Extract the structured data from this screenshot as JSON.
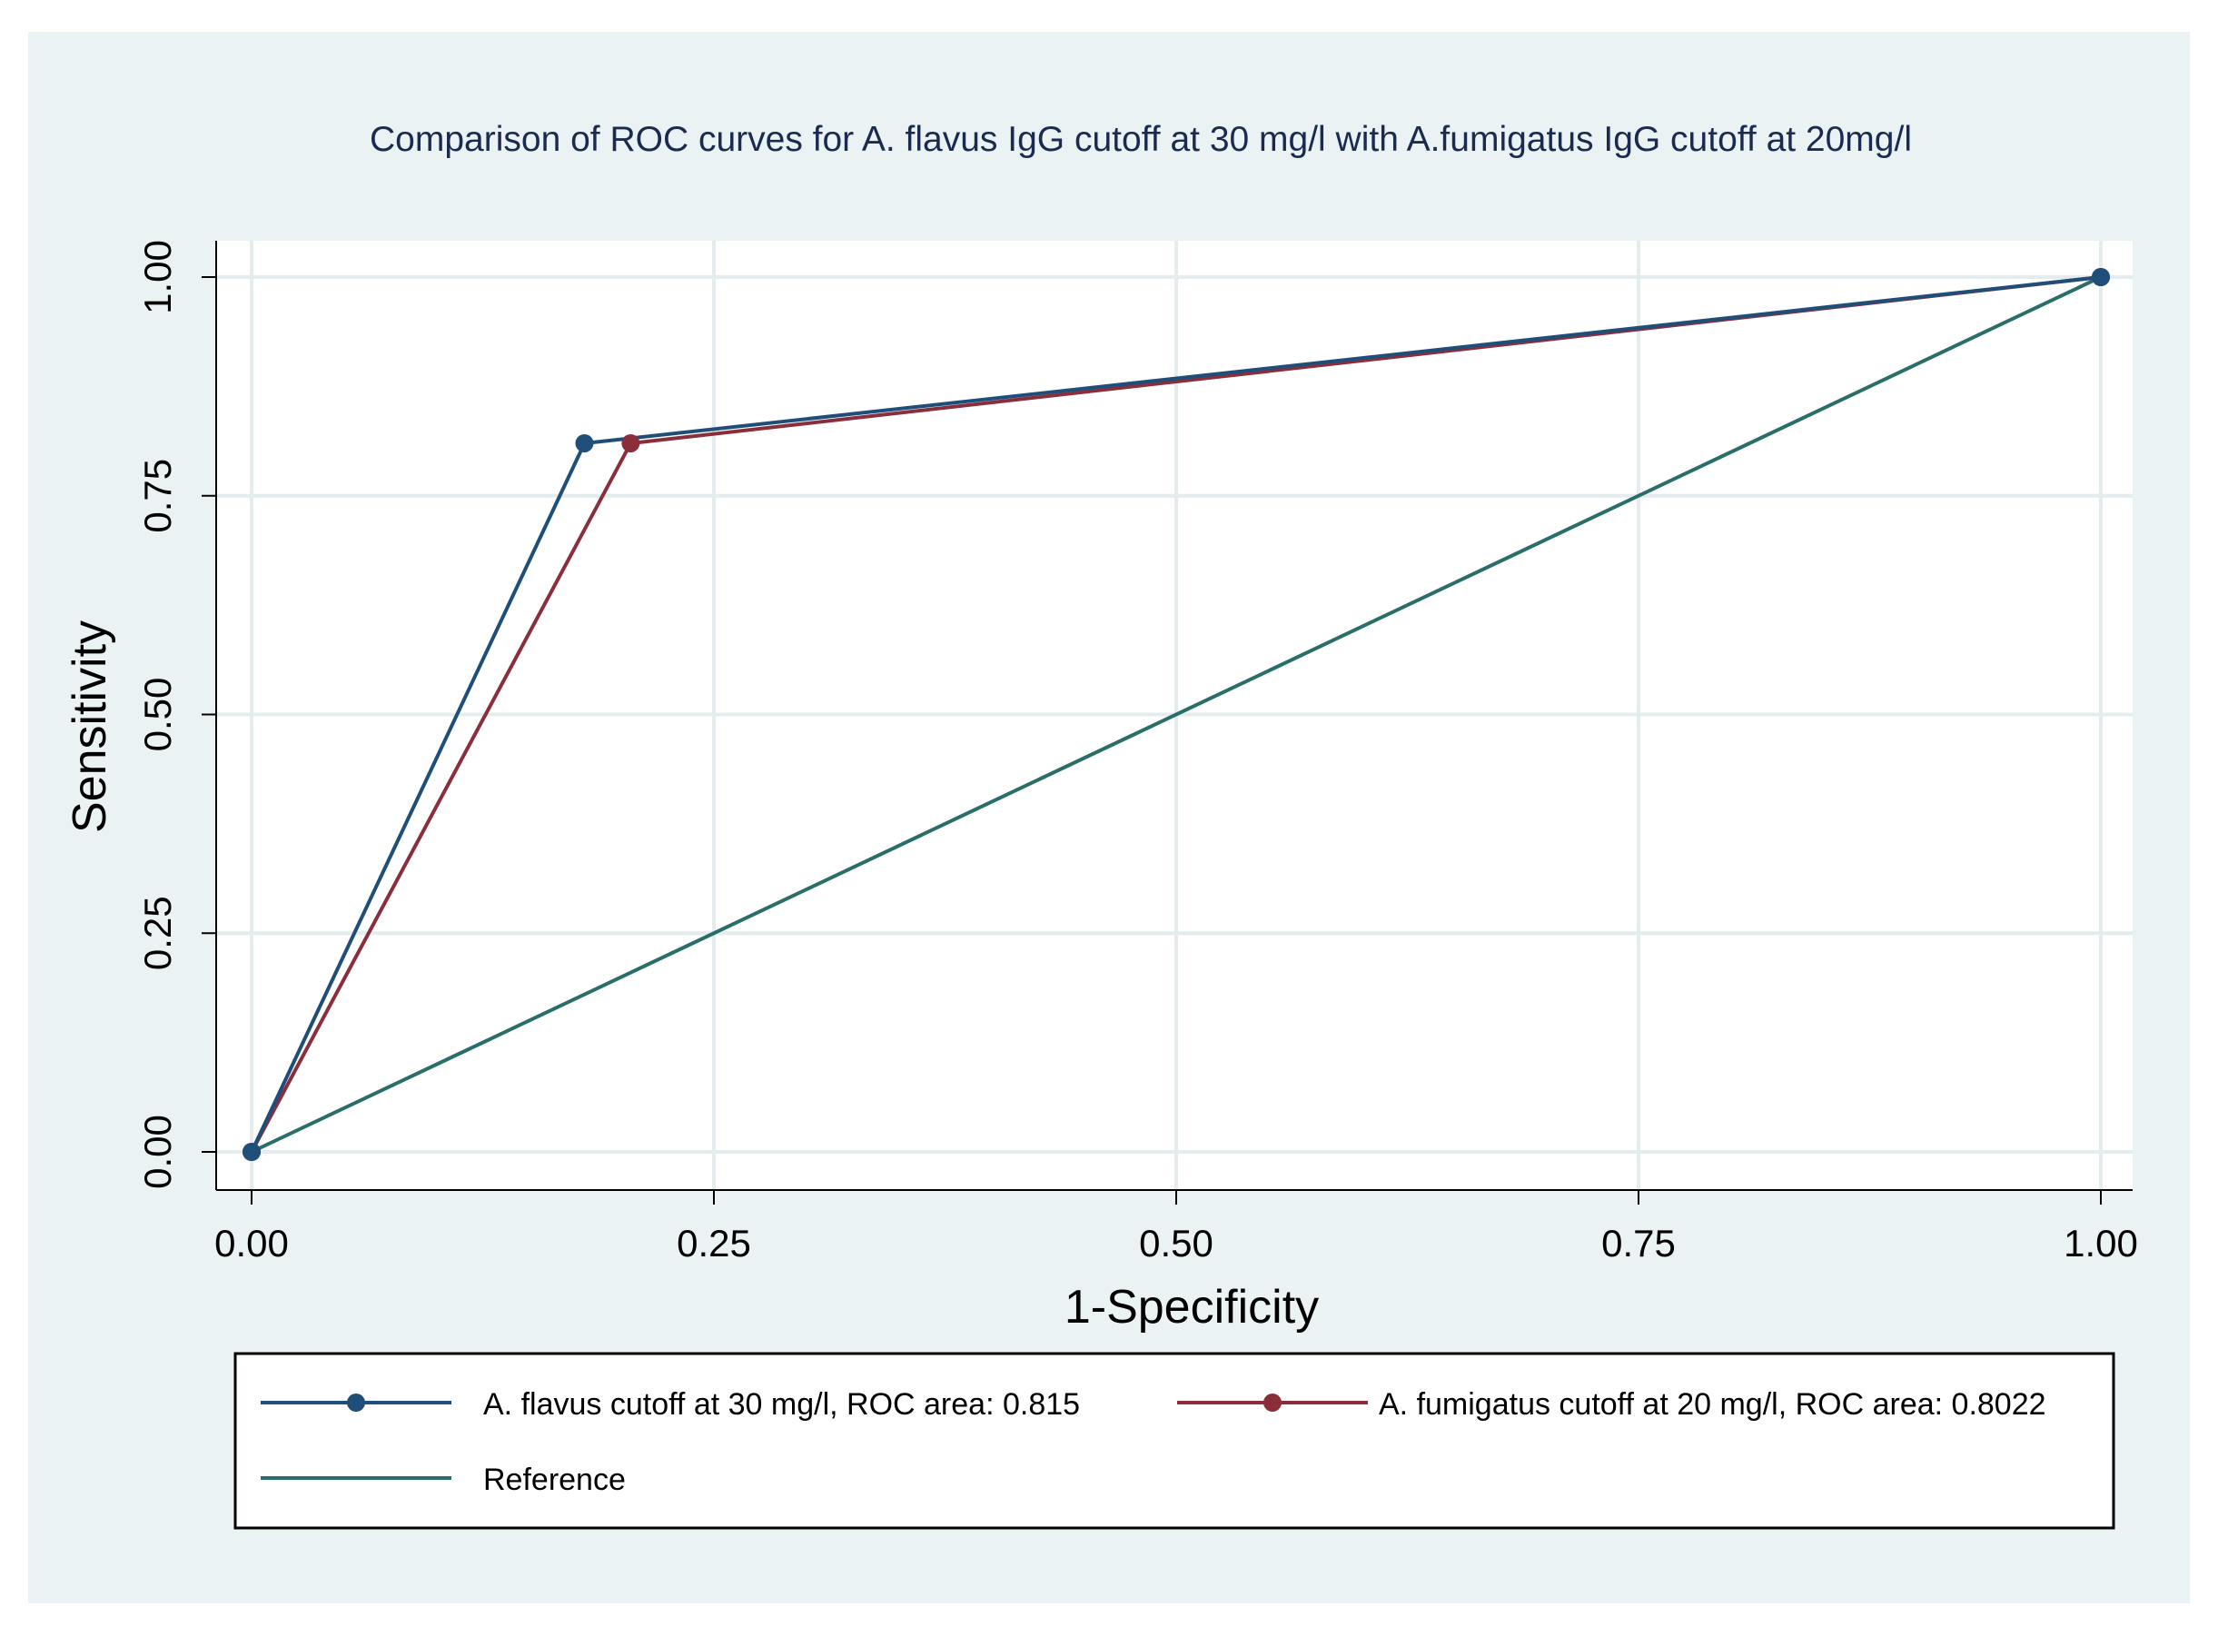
{
  "chart_data": {
    "type": "line",
    "title": "Comparison of ROC curves for A. flavus IgG cutoff at 30 mg/l with A.fumigatus IgG cutoff at 20mg/l",
    "xlabel": "1-Specificity",
    "ylabel": "Sensitivity",
    "xlim": [
      0,
      1
    ],
    "ylim": [
      0,
      1
    ],
    "grid": true,
    "x_ticks": [
      "0.00",
      "0.25",
      "0.50",
      "0.75",
      "1.00"
    ],
    "y_ticks": [
      "0.00",
      "0.25",
      "0.50",
      "0.75",
      "1.00"
    ],
    "legend_position": "bottom",
    "series": [
      {
        "name": "A. flavus cutoff at 30 mg/l, ROC area: 0.815",
        "color": "#1f4e79",
        "markers": true,
        "x": [
          0,
          0.18,
          1
        ],
        "y": [
          0,
          0.81,
          1
        ]
      },
      {
        "name": "A. fumigatus cutoff at 20 mg/l, ROC area: 0.8022",
        "color": "#8b2e3c",
        "markers": true,
        "x": [
          0,
          0.205,
          1
        ],
        "y": [
          0,
          0.81,
          1
        ]
      },
      {
        "name": "Reference",
        "color": "#2a6e6a",
        "markers": false,
        "x": [
          0,
          1
        ],
        "y": [
          0,
          1
        ]
      }
    ]
  }
}
